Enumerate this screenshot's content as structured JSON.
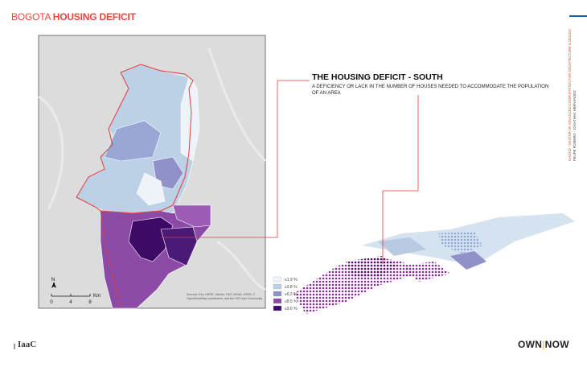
{
  "header": {
    "title_light": "BOGOTA",
    "title_bold": "HOUSING DEFICIT"
  },
  "panel": {
    "heading": "THE HOUSING DEFICIT - SOUTH",
    "description": "A DEFICIENCY OR LACK IN THE NUMBER OF HOUSES NEEDED TO ACCOMMODATE THE POPULATION OF AN AREA"
  },
  "legend": {
    "items": [
      {
        "label": "≤1.9 %",
        "color": "#eef3f9"
      },
      {
        "label": "≤3.8 %",
        "color": "#bcd0e6"
      },
      {
        "label": "≤6.2 %",
        "color": "#8f91c8"
      },
      {
        "label": "≤8.5 %",
        "color": "#8a4aa6"
      },
      {
        "label": "≤9.6 %",
        "color": "#3d0a66"
      }
    ]
  },
  "map": {
    "north": "N",
    "scale_labels": [
      "0",
      "4",
      "8"
    ],
    "scale_unit": "Km",
    "attribution": "Sources: Esri, HERE, Garmin, FAO, NOAA, USGS, © OpenStreetMap contributors, and the GIS User Community"
  },
  "side": {
    "program": "IAACAD - MASTER OF ADVANCED COMPUTATION FOR ARCHITECTURE & DESIGN",
    "authors": "FELIPE ROMERO - JONATHAN HERNANDEZ"
  },
  "footer": {
    "left_logo": "IaaC",
    "right_logo_a": "OWN",
    "right_logo_sep": "|",
    "right_logo_b": "NOW"
  }
}
